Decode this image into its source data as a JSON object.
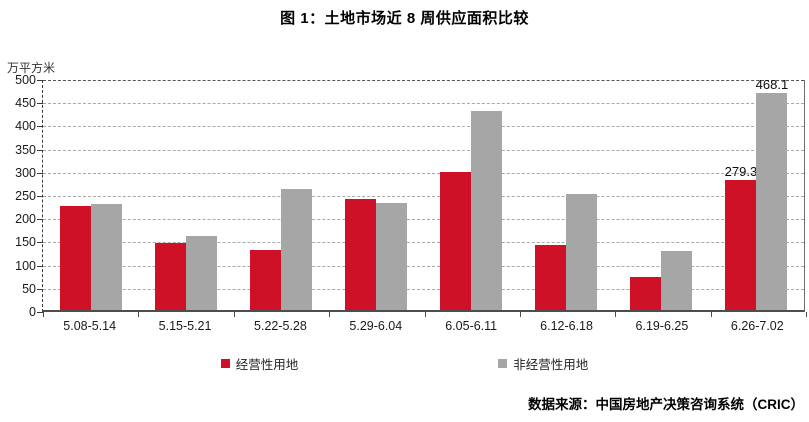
{
  "title": "图 1：土地市场近 8 周供应面积比较",
  "unit_label": "万平方米",
  "source": "数据来源：中国房地产决策咨询系统（CRIC）",
  "chart_data": {
    "type": "bar",
    "title": "图 1：土地市场近 8 周供应面积比较",
    "ylabel": "万平方米",
    "xlabel": "",
    "categories": [
      "5.08-5.14",
      "5.15-5.21",
      "5.22-5.28",
      "5.29-6.04",
      "6.05-6.11",
      "6.12-6.18",
      "6.19-6.25",
      "6.26-7.02"
    ],
    "series": [
      {
        "name": "经营性用地",
        "color": "#CE1126",
        "values": [
          224,
          144,
          130,
          239,
          297,
          141,
          71,
          279.3
        ]
      },
      {
        "name": "非经营性用地",
        "color": "#A6A6A6",
        "values": [
          228,
          159,
          260,
          230,
          428,
          250,
          127,
          468.1
        ]
      }
    ],
    "data_labels": [
      {
        "series_index": 0,
        "category_index": 7,
        "text": "279.3"
      },
      {
        "series_index": 1,
        "category_index": 7,
        "text": "468.1"
      }
    ],
    "ylim": [
      0,
      500
    ],
    "ytick_step": 50,
    "yticks": [
      0,
      50,
      100,
      150,
      200,
      250,
      300,
      350,
      400,
      450,
      500
    ],
    "grid": "horizontal-dashed",
    "legend_position": "bottom-center"
  }
}
